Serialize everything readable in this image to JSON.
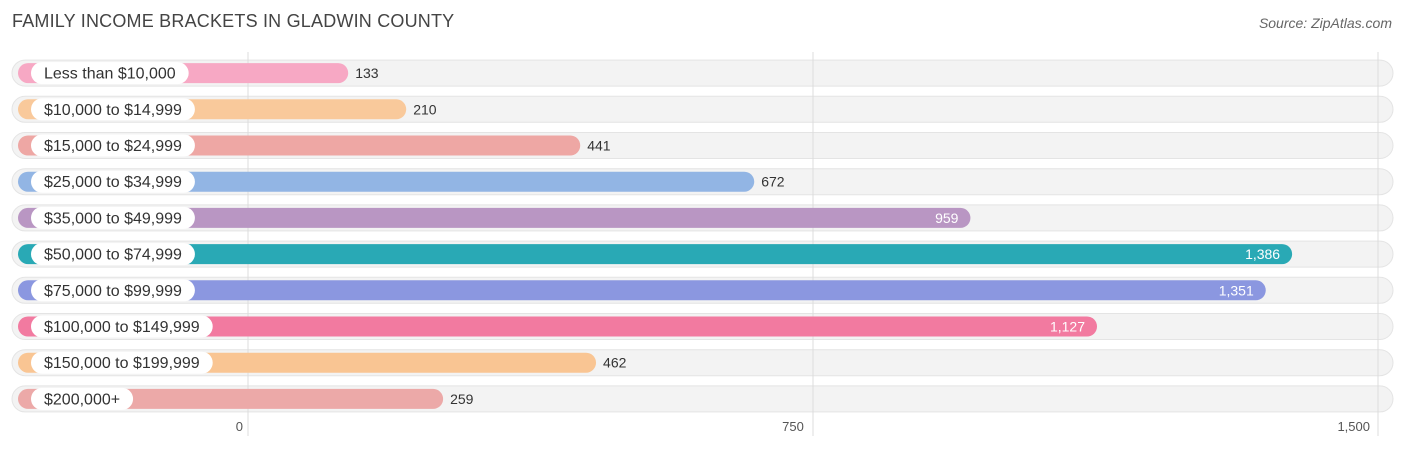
{
  "title": "FAMILY INCOME BRACKETS IN GLADWIN COUNTY",
  "source": "Source: ZipAtlas.com",
  "chart_data": {
    "type": "bar",
    "orientation": "horizontal",
    "title": "FAMILY INCOME BRACKETS IN GLADWIN COUNTY",
    "categories": [
      "Less than $10,000",
      "$10,000 to $14,999",
      "$15,000 to $24,999",
      "$25,000 to $34,999",
      "$35,000 to $49,999",
      "$50,000 to $74,999",
      "$75,000 to $99,999",
      "$100,000 to $149,999",
      "$150,000 to $199,999",
      "$200,000+"
    ],
    "values": [
      133,
      210,
      441,
      672,
      959,
      1386,
      1351,
      1127,
      462,
      259
    ],
    "value_labels": [
      "133",
      "210",
      "441",
      "672",
      "959",
      "1,386",
      "1,351",
      "1,127",
      "462",
      "259"
    ],
    "colors": [
      "#f7a8c4",
      "#f9c99b",
      "#eea7a4",
      "#92b5e4",
      "#b996c3",
      "#29a9b5",
      "#8b97e0",
      "#f27aa0",
      "#f9c593",
      "#eca9a8"
    ],
    "xlim": [
      0,
      1500
    ],
    "ticks": [
      0,
      750,
      1500
    ],
    "tick_labels": [
      "0",
      "750",
      "1,500"
    ],
    "grid": true,
    "xlabel": "",
    "ylabel": ""
  }
}
